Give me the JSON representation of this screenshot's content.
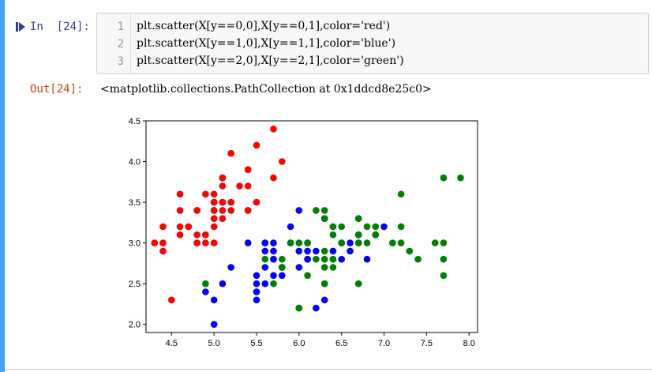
{
  "cell": {
    "in_prompt": "In  [24]:",
    "out_prompt": "Out[24]:",
    "code_lines": [
      {
        "num": "1",
        "text": "plt.scatter(X[y==0,0],X[y==0,1],color='red')"
      },
      {
        "num": "2",
        "text": "plt.scatter(X[y==1,0],X[y==1,1],color='blue')"
      },
      {
        "num": "3",
        "text": "plt.scatter(X[y==2,0],X[y==2,1],color='green')"
      }
    ],
    "output_text": "<matplotlib.collections.PathCollection at 0x1ddcd8e25c0>"
  },
  "colors": {
    "accent_bar": "#42a5f5",
    "in_prompt": "#303f9f",
    "out_prompt": "#d84315"
  },
  "chart_data": {
    "type": "scatter",
    "xlim": [
      4.2,
      8.1
    ],
    "ylim": [
      1.9,
      4.5
    ],
    "xticks": [
      "4.5",
      "5.0",
      "5.5",
      "6.0",
      "6.5",
      "7.0",
      "7.5",
      "8.0"
    ],
    "yticks": [
      "2.0",
      "2.5",
      "3.0",
      "3.5",
      "4.0",
      "4.5"
    ],
    "grid": false,
    "series": [
      {
        "color": "red",
        "points": [
          [
            5.1,
            3.5
          ],
          [
            4.9,
            3.0
          ],
          [
            4.7,
            3.2
          ],
          [
            4.6,
            3.1
          ],
          [
            5.0,
            3.6
          ],
          [
            5.4,
            3.9
          ],
          [
            4.6,
            3.4
          ],
          [
            5.0,
            3.4
          ],
          [
            4.4,
            2.9
          ],
          [
            4.9,
            3.1
          ],
          [
            5.4,
            3.7
          ],
          [
            4.8,
            3.4
          ],
          [
            4.8,
            3.0
          ],
          [
            4.3,
            3.0
          ],
          [
            5.8,
            4.0
          ],
          [
            5.7,
            4.4
          ],
          [
            5.4,
            3.9
          ],
          [
            5.1,
            3.5
          ],
          [
            5.7,
            3.8
          ],
          [
            5.1,
            3.8
          ],
          [
            5.4,
            3.4
          ],
          [
            5.1,
            3.7
          ],
          [
            4.6,
            3.6
          ],
          [
            5.1,
            3.3
          ],
          [
            4.8,
            3.4
          ],
          [
            5.0,
            3.0
          ],
          [
            5.0,
            3.4
          ],
          [
            5.2,
            3.5
          ],
          [
            5.2,
            3.4
          ],
          [
            4.7,
            3.2
          ],
          [
            4.8,
            3.1
          ],
          [
            5.4,
            3.4
          ],
          [
            5.2,
            4.1
          ],
          [
            5.5,
            4.2
          ],
          [
            4.9,
            3.1
          ],
          [
            5.0,
            3.2
          ],
          [
            5.5,
            3.5
          ],
          [
            4.9,
            3.6
          ],
          [
            4.4,
            3.0
          ],
          [
            5.1,
            3.4
          ],
          [
            5.0,
            3.5
          ],
          [
            4.5,
            2.3
          ],
          [
            4.4,
            3.2
          ],
          [
            5.0,
            3.5
          ],
          [
            5.1,
            3.8
          ],
          [
            4.8,
            3.0
          ],
          [
            5.1,
            3.8
          ],
          [
            4.6,
            3.2
          ],
          [
            5.3,
            3.7
          ],
          [
            5.0,
            3.3
          ]
        ]
      },
      {
        "color": "blue",
        "points": [
          [
            7.0,
            3.2
          ],
          [
            6.4,
            3.2
          ],
          [
            6.9,
            3.1
          ],
          [
            5.5,
            2.3
          ],
          [
            6.5,
            2.8
          ],
          [
            5.7,
            2.8
          ],
          [
            6.3,
            3.3
          ],
          [
            4.9,
            2.4
          ],
          [
            6.6,
            2.9
          ],
          [
            5.2,
            2.7
          ],
          [
            5.0,
            2.0
          ],
          [
            5.9,
            3.0
          ],
          [
            6.0,
            2.2
          ],
          [
            6.1,
            2.9
          ],
          [
            5.6,
            2.9
          ],
          [
            6.7,
            3.1
          ],
          [
            5.6,
            3.0
          ],
          [
            5.8,
            2.7
          ],
          [
            6.2,
            2.2
          ],
          [
            5.6,
            2.5
          ],
          [
            5.9,
            3.2
          ],
          [
            6.1,
            2.8
          ],
          [
            6.3,
            2.5
          ],
          [
            6.1,
            2.8
          ],
          [
            6.4,
            2.9
          ],
          [
            6.6,
            3.0
          ],
          [
            6.8,
            2.8
          ],
          [
            6.7,
            3.0
          ],
          [
            6.0,
            2.9
          ],
          [
            5.7,
            2.6
          ],
          [
            5.5,
            2.4
          ],
          [
            5.5,
            2.4
          ],
          [
            5.8,
            2.7
          ],
          [
            6.0,
            2.7
          ],
          [
            5.4,
            3.0
          ],
          [
            6.0,
            3.4
          ],
          [
            6.7,
            3.1
          ],
          [
            6.3,
            2.3
          ],
          [
            5.6,
            3.0
          ],
          [
            5.5,
            2.5
          ],
          [
            5.5,
            2.6
          ],
          [
            6.1,
            3.0
          ],
          [
            5.8,
            2.6
          ],
          [
            5.0,
            2.3
          ],
          [
            5.6,
            2.7
          ],
          [
            5.7,
            3.0
          ],
          [
            5.7,
            2.9
          ],
          [
            6.2,
            2.9
          ],
          [
            5.1,
            2.5
          ],
          [
            5.7,
            2.8
          ]
        ]
      },
      {
        "color": "green",
        "points": [
          [
            6.3,
            3.3
          ],
          [
            5.8,
            2.7
          ],
          [
            7.1,
            3.0
          ],
          [
            6.3,
            2.9
          ],
          [
            6.5,
            3.0
          ],
          [
            7.6,
            3.0
          ],
          [
            4.9,
            2.5
          ],
          [
            7.3,
            2.9
          ],
          [
            6.7,
            2.5
          ],
          [
            7.2,
            3.6
          ],
          [
            6.5,
            3.2
          ],
          [
            6.4,
            2.7
          ],
          [
            6.8,
            3.0
          ],
          [
            5.7,
            2.5
          ],
          [
            5.8,
            2.8
          ],
          [
            6.4,
            3.2
          ],
          [
            6.5,
            3.0
          ],
          [
            7.7,
            3.8
          ],
          [
            7.7,
            2.6
          ],
          [
            6.0,
            2.2
          ],
          [
            6.9,
            3.2
          ],
          [
            5.6,
            2.8
          ],
          [
            7.7,
            2.8
          ],
          [
            6.3,
            2.7
          ],
          [
            6.7,
            3.3
          ],
          [
            7.2,
            3.2
          ],
          [
            6.2,
            2.8
          ],
          [
            6.1,
            3.0
          ],
          [
            6.4,
            2.8
          ],
          [
            7.2,
            3.0
          ],
          [
            7.4,
            2.8
          ],
          [
            7.9,
            3.8
          ],
          [
            6.4,
            2.8
          ],
          [
            6.3,
            2.8
          ],
          [
            6.1,
            2.6
          ],
          [
            7.7,
            3.0
          ],
          [
            6.3,
            3.4
          ],
          [
            6.4,
            3.1
          ],
          [
            6.0,
            3.0
          ],
          [
            6.9,
            3.1
          ],
          [
            6.7,
            3.1
          ],
          [
            6.9,
            3.1
          ],
          [
            5.8,
            2.7
          ],
          [
            6.8,
            3.2
          ],
          [
            6.7,
            3.3
          ],
          [
            6.7,
            3.0
          ],
          [
            6.3,
            2.5
          ],
          [
            6.5,
            3.0
          ],
          [
            6.2,
            3.4
          ],
          [
            5.9,
            3.0
          ]
        ]
      }
    ]
  }
}
